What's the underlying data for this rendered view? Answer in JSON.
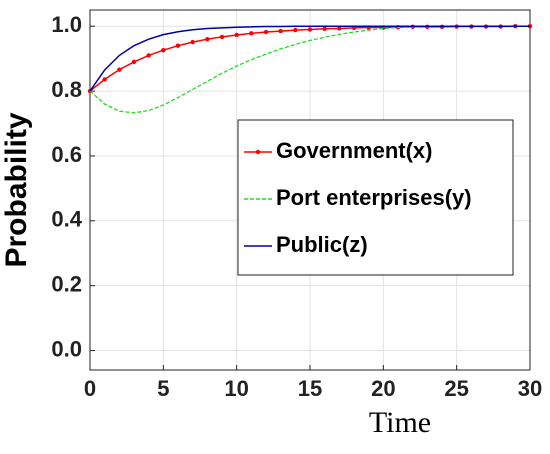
{
  "chart_data": {
    "type": "line",
    "ylabel": "Probability",
    "xlabel": "Time",
    "x": [
      0,
      1,
      2,
      3,
      4,
      5,
      6,
      7,
      8,
      9,
      10,
      11,
      12,
      13,
      14,
      15,
      16,
      17,
      18,
      19,
      20,
      21,
      22,
      23,
      24,
      25,
      26,
      27,
      28,
      29,
      30
    ],
    "series": [
      {
        "name": "Government(x)",
        "color": "#ff0000",
        "marker": true,
        "dash": false,
        "values": [
          0.8,
          0.836,
          0.866,
          0.89,
          0.91,
          0.926,
          0.94,
          0.951,
          0.96,
          0.967,
          0.973,
          0.978,
          0.982,
          0.985,
          0.988,
          0.99,
          0.992,
          0.993,
          0.995,
          0.996,
          0.996,
          0.997,
          0.998,
          0.998,
          0.998,
          0.999,
          0.999,
          0.999,
          0.999,
          1.0,
          1.0
        ]
      },
      {
        "name": "Port enterprises(y)",
        "color": "#22dd22",
        "marker": false,
        "dash": true,
        "values": [
          0.8,
          0.76,
          0.738,
          0.733,
          0.74,
          0.757,
          0.78,
          0.805,
          0.83,
          0.855,
          0.877,
          0.897,
          0.914,
          0.93,
          0.944,
          0.956,
          0.966,
          0.975,
          0.982,
          0.988,
          0.993,
          0.996,
          0.998,
          0.999,
          1.0,
          1.0,
          1.0,
          1.0,
          1.0,
          1.0,
          1.0
        ]
      },
      {
        "name": "Public(z)",
        "color": "#0000aa",
        "marker": false,
        "dash": false,
        "values": [
          0.8,
          0.865,
          0.91,
          0.94,
          0.96,
          0.974,
          0.983,
          0.989,
          0.993,
          0.995,
          0.997,
          0.998,
          0.999,
          0.999,
          1.0,
          1.0,
          1.0,
          1.0,
          1.0,
          1.0,
          1.0,
          1.0,
          1.0,
          1.0,
          1.0,
          1.0,
          1.0,
          1.0,
          1.0,
          1.0,
          1.0
        ]
      }
    ],
    "xlim": [
      0,
      30
    ],
    "xticks": [
      0,
      5,
      10,
      15,
      20,
      25,
      30
    ],
    "ylim": [
      -0.06,
      1.05
    ],
    "yticks": [
      {
        "value": 0,
        "label": "0.0"
      },
      0.2,
      0.4,
      0.6,
      0.8,
      {
        "value": 1,
        "label": "1.0"
      }
    ],
    "grid": true,
    "legend": "right"
  }
}
